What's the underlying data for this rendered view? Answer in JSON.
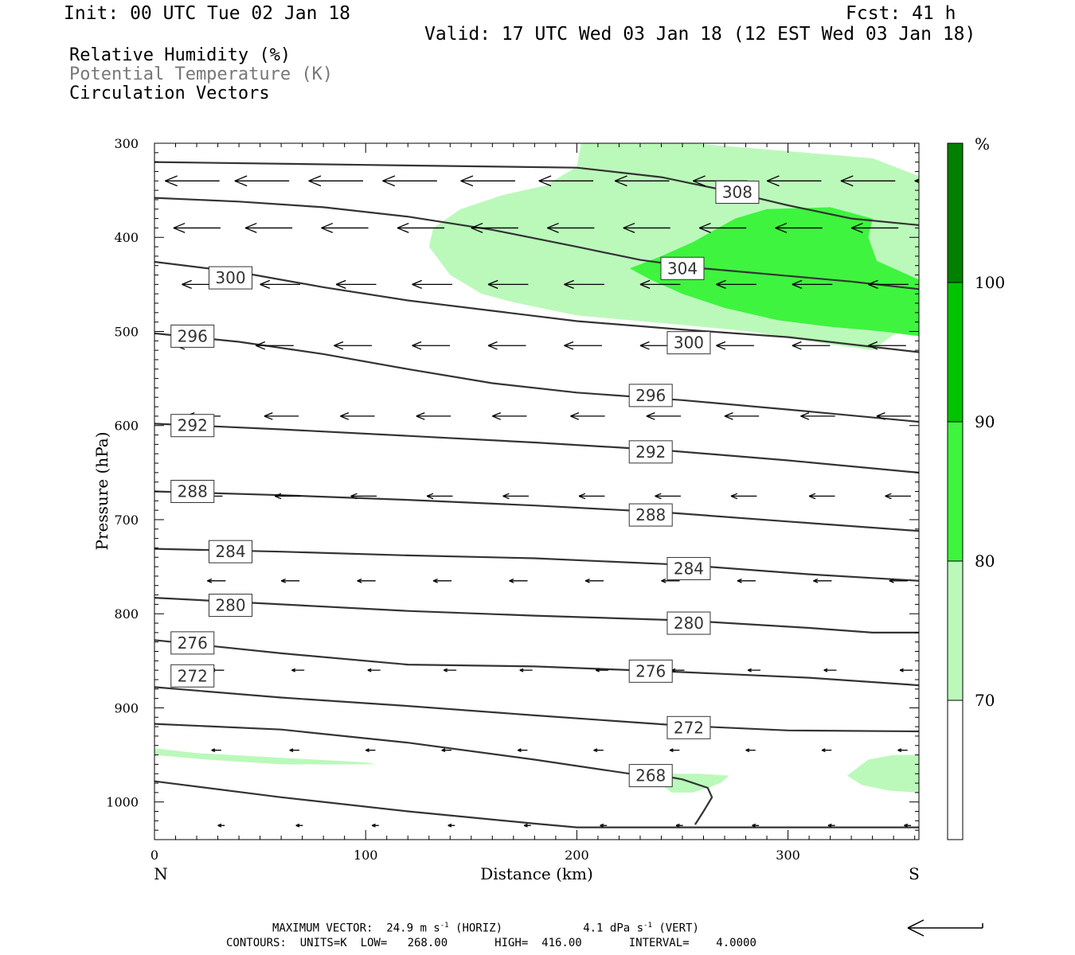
{
  "header": {
    "init": "Init: 00 UTC Tue 02 Jan 18",
    "fcst": "Fcst:   41 h",
    "valid": "Valid: 17 UTC Wed 03 Jan 18 (12 EST Wed 03 Jan 18)"
  },
  "legend": {
    "line1": "Relative Humidity (%)",
    "line2": "Potential Temperature (K)",
    "line3": "Circulation Vectors"
  },
  "footer": {
    "max_vector_label": "MAXIMUM VECTOR:",
    "horiz_value": "24.9 m s",
    "horiz_exp": "-1",
    "horiz_unit": "(HORIZ)",
    "vert_value": "4.1 dPa s",
    "vert_exp": "-1",
    "vert_unit": "(VERT)",
    "contours": "CONTOURS:  UNITS=K  LOW=   268.00       HIGH=  416.00       INTERVAL=    4.0000"
  },
  "colors": {
    "rh70": "#bbf9bb",
    "rh80": "#3ef43e",
    "rh90": "#00c400",
    "rh100": "#008000",
    "theta": "#333333"
  },
  "chart_data": {
    "type": "cross-section",
    "xlabel": "Distance (km)",
    "ylabel": "Pressure (hPa)",
    "x_end_left": "N",
    "x_end_right": "S",
    "xlim": [
      0,
      362
    ],
    "ylim": [
      1040,
      300
    ],
    "xticks": [
      0,
      100,
      200,
      300
    ],
    "yticks": [
      300,
      400,
      500,
      600,
      700,
      800,
      900,
      1000
    ],
    "colorbar": {
      "unit": "%",
      "levels": [
        70,
        80,
        90,
        100
      ],
      "labels": [
        "70",
        "80",
        "90",
        "100"
      ]
    },
    "rh_regions": [
      {
        "level": 70,
        "polygon": [
          [
            202,
            300
          ],
          [
            233,
            300
          ],
          [
            255,
            300
          ],
          [
            340,
            316
          ],
          [
            362,
            335
          ],
          [
            362,
            455
          ],
          [
            355,
            495
          ],
          [
            340,
            520
          ],
          [
            318,
            513
          ],
          [
            282,
            500
          ],
          [
            245,
            492
          ],
          [
            200,
            483
          ],
          [
            170,
            469
          ],
          [
            155,
            460
          ],
          [
            140,
            440
          ],
          [
            130,
            410
          ],
          [
            132,
            390
          ],
          [
            145,
            370
          ],
          [
            165,
            355
          ],
          [
            185,
            345
          ],
          [
            200,
            325
          ]
        ]
      },
      {
        "level": 80,
        "polygon": [
          [
            225,
            433
          ],
          [
            240,
            420
          ],
          [
            255,
            405
          ],
          [
            275,
            380
          ],
          [
            290,
            370
          ],
          [
            320,
            368
          ],
          [
            340,
            380
          ],
          [
            338,
            400
          ],
          [
            342,
            425
          ],
          [
            362,
            445
          ],
          [
            362,
            505
          ],
          [
            345,
            500
          ],
          [
            320,
            495
          ],
          [
            295,
            488
          ],
          [
            270,
            475
          ],
          [
            250,
            460
          ],
          [
            235,
            445
          ]
        ]
      },
      {
        "level": 70,
        "polygon": [
          [
            0,
            943
          ],
          [
            20,
            948
          ],
          [
            60,
            953
          ],
          [
            100,
            958
          ],
          [
            105,
            960
          ],
          [
            60,
            960
          ],
          [
            25,
            955
          ],
          [
            0,
            950
          ]
        ]
      },
      {
        "level": 70,
        "polygon": [
          [
            245,
            970
          ],
          [
            258,
            970
          ],
          [
            272,
            972
          ],
          [
            268,
            980
          ],
          [
            262,
            985
          ],
          [
            255,
            990
          ],
          [
            245,
            990
          ],
          [
            238,
            978
          ]
        ]
      },
      {
        "level": 70,
        "polygon": [
          [
            328,
            972
          ],
          [
            338,
            955
          ],
          [
            350,
            950
          ],
          [
            362,
            950
          ],
          [
            362,
            990
          ],
          [
            348,
            988
          ],
          [
            335,
            982
          ]
        ]
      }
    ],
    "theta_contours": [
      {
        "value": 308,
        "label": "308",
        "label_at": [
          276,
          352
        ],
        "points": [
          [
            0,
            320
          ],
          [
            100,
            323
          ],
          [
            200,
            326
          ],
          [
            240,
            336
          ],
          [
            270,
            350
          ],
          [
            300,
            366
          ],
          [
            330,
            380
          ],
          [
            362,
            387
          ]
        ]
      },
      {
        "value": 304,
        "label": "304",
        "label_at": [
          250,
          433
        ],
        "points": [
          [
            0,
            358
          ],
          [
            40,
            362
          ],
          [
            80,
            368
          ],
          [
            120,
            378
          ],
          [
            160,
            392
          ],
          [
            200,
            410
          ],
          [
            230,
            424
          ],
          [
            260,
            433
          ],
          [
            300,
            441
          ],
          [
            330,
            447
          ],
          [
            362,
            455
          ]
        ]
      },
      {
        "value": 300,
        "label": "300",
        "label_at": [
          36,
          443
        ],
        "points": [
          [
            0,
            426
          ],
          [
            40,
            437
          ],
          [
            80,
            453
          ],
          [
            120,
            467
          ],
          [
            160,
            478
          ],
          [
            200,
            489
          ],
          [
            250,
            498
          ],
          [
            300,
            506
          ],
          [
            362,
            522
          ]
        ]
      },
      {
        "value": 300,
        "label": "300",
        "label_at": [
          253,
          512
        ],
        "points": []
      },
      {
        "value": 296,
        "label": "296",
        "label_at": [
          18,
          505
        ],
        "points": [
          [
            0,
            502
          ],
          [
            40,
            511
          ],
          [
            80,
            524
          ],
          [
            120,
            540
          ],
          [
            160,
            555
          ],
          [
            200,
            565
          ],
          [
            250,
            573
          ],
          [
            300,
            583
          ],
          [
            362,
            596
          ]
        ]
      },
      {
        "value": 296,
        "label": "296",
        "label_at": [
          235,
          568
        ],
        "points": []
      },
      {
        "value": 292,
        "label": "292",
        "label_at": [
          18,
          600
        ],
        "points": [
          [
            0,
            598
          ],
          [
            60,
            604
          ],
          [
            120,
            611
          ],
          [
            180,
            618
          ],
          [
            240,
            626
          ],
          [
            300,
            637
          ],
          [
            362,
            650
          ]
        ]
      },
      {
        "value": 292,
        "label": "292",
        "label_at": [
          235,
          628
        ],
        "points": []
      },
      {
        "value": 288,
        "label": "288",
        "label_at": [
          18,
          670
        ],
        "points": [
          [
            0,
            670
          ],
          [
            60,
            674
          ],
          [
            120,
            679
          ],
          [
            180,
            685
          ],
          [
            240,
            692
          ],
          [
            300,
            702
          ],
          [
            362,
            712
          ]
        ]
      },
      {
        "value": 288,
        "label": "288",
        "label_at": [
          235,
          695
        ],
        "points": []
      },
      {
        "value": 284,
        "label": "284",
        "label_at": [
          36,
          734
        ],
        "points": [
          [
            0,
            731
          ],
          [
            60,
            734
          ],
          [
            120,
            738
          ],
          [
            180,
            741
          ],
          [
            250,
            748
          ],
          [
            310,
            758
          ],
          [
            362,
            765
          ]
        ]
      },
      {
        "value": 284,
        "label": "284",
        "label_at": [
          253,
          752
        ],
        "points": []
      },
      {
        "value": 280,
        "label": "280",
        "label_at": [
          36,
          791
        ],
        "points": [
          [
            0,
            783
          ],
          [
            60,
            790
          ],
          [
            120,
            797
          ],
          [
            180,
            802
          ],
          [
            250,
            807
          ],
          [
            310,
            815
          ],
          [
            340,
            820
          ],
          [
            362,
            820
          ]
        ]
      },
      {
        "value": 280,
        "label": "280",
        "label_at": [
          253,
          810
        ],
        "points": []
      },
      {
        "value": 276,
        "label": "276",
        "label_at": [
          18,
          831
        ],
        "points": [
          [
            0,
            828
          ],
          [
            60,
            842
          ],
          [
            120,
            854
          ],
          [
            180,
            856
          ],
          [
            250,
            862
          ],
          [
            310,
            868
          ],
          [
            362,
            876
          ]
        ]
      },
      {
        "value": 276,
        "label": "276",
        "label_at": [
          235,
          861
        ],
        "points": []
      },
      {
        "value": 272,
        "label": "272",
        "label_at": [
          18,
          866
        ],
        "points": [
          [
            0,
            878
          ],
          [
            60,
            889
          ],
          [
            120,
            898
          ],
          [
            180,
            908
          ],
          [
            250,
            919
          ],
          [
            300,
            924
          ],
          [
            362,
            925
          ]
        ]
      },
      {
        "value": 272,
        "label": "272",
        "label_at": [
          253,
          921
        ],
        "points": []
      },
      {
        "value": 268,
        "label": "268",
        "label_at": [
          235,
          972
        ],
        "points": [
          [
            0,
            917
          ],
          [
            60,
            923
          ],
          [
            120,
            937
          ],
          [
            180,
            955
          ],
          [
            225,
            970
          ],
          [
            240,
            972
          ],
          [
            250,
            976
          ],
          [
            262,
            985
          ],
          [
            264,
            995
          ],
          [
            260,
            1010
          ],
          [
            256,
            1024
          ]
        ]
      },
      {
        "value": 268,
        "label": "",
        "label_at": null,
        "points": [
          [
            0,
            978
          ],
          [
            60,
            995
          ],
          [
            120,
            1010
          ],
          [
            180,
            1023
          ],
          [
            200,
            1027
          ],
          [
            362,
            1027
          ]
        ]
      }
    ],
    "vectors": [
      {
        "p": 340,
        "x": [
          5,
          38,
          73,
          108,
          145,
          182,
          218,
          255,
          290,
          325,
          360
        ],
        "len": 0.95
      },
      {
        "p": 390,
        "x": [
          9,
          43,
          79,
          115,
          150,
          186,
          222,
          258,
          294,
          330,
          362
        ],
        "len": 0.82
      },
      {
        "p": 450,
        "x": [
          13,
          50,
          86,
          122,
          158,
          194,
          230,
          266,
          302,
          338,
          362
        ],
        "len": 0.7
      },
      {
        "p": 515,
        "x": [
          10,
          48,
          85,
          122,
          158,
          194,
          230,
          266,
          302,
          338,
          362
        ],
        "len": 0.66
      },
      {
        "p": 590,
        "x": [
          15,
          52,
          88,
          124,
          160,
          197,
          233,
          270,
          306,
          342,
          362
        ],
        "len": 0.6
      },
      {
        "p": 675,
        "x": [
          20,
          57,
          93,
          129,
          165,
          201,
          237,
          273,
          310,
          346,
          362
        ],
        "len": 0.45
      },
      {
        "p": 765,
        "x": [
          25,
          60,
          96,
          132,
          168,
          204,
          240,
          276,
          312,
          348,
          362
        ],
        "len": 0.32
      },
      {
        "p": 860,
        "x": [
          27,
          65,
          101,
          137,
          173,
          209,
          245,
          281,
          317,
          353,
          362
        ],
        "len": 0.22
      },
      {
        "p": 945,
        "x": [
          27,
          64,
          100,
          136,
          172,
          208,
          244,
          280,
          316,
          352,
          362
        ],
        "len": 0.17
      },
      {
        "p": 1025,
        "x": [
          30,
          67,
          103,
          139,
          175,
          211,
          247,
          283,
          319,
          355,
          362
        ],
        "len": 0.12
      }
    ]
  }
}
